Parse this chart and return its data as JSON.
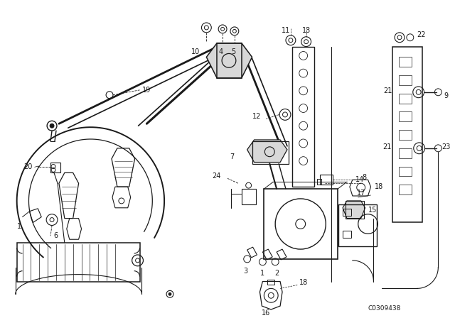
{
  "figsize": [
    6.4,
    4.48
  ],
  "dpi": 100,
  "catalog_number": "C0309438",
  "bg": "white",
  "lc": "#1a1a1a"
}
